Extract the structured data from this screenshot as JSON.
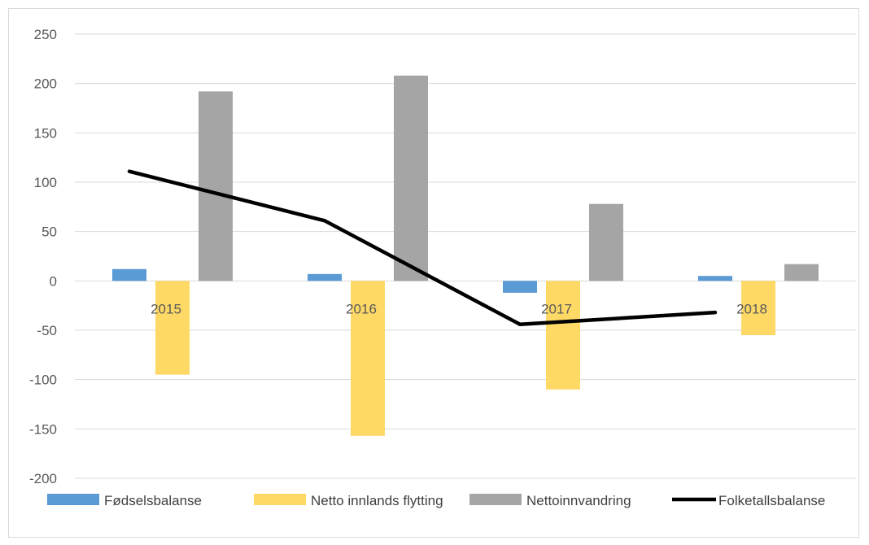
{
  "chart_data": {
    "type": "bar",
    "categories": [
      "2015",
      "2016",
      "2017",
      "2018"
    ],
    "series": [
      {
        "name": "Fødselsbalanse",
        "kind": "bar",
        "color": "#5b9bd5",
        "values": [
          12,
          7,
          -12,
          5
        ]
      },
      {
        "name": "Netto innlands flytting",
        "kind": "bar",
        "color": "#ffd966",
        "values": [
          -95,
          -157,
          -110,
          -55
        ]
      },
      {
        "name": "Nettoinnvandring",
        "kind": "bar",
        "color": "#a5a5a5",
        "values": [
          192,
          208,
          78,
          17
        ]
      },
      {
        "name": "Folketallsbalanse",
        "kind": "line",
        "color": "#000000",
        "values": [
          111,
          61,
          -44,
          -32
        ]
      }
    ],
    "y_ticks": [
      "250",
      "200",
      "150",
      "100",
      "50",
      "0",
      "-50",
      "-100",
      "-150",
      "-200"
    ],
    "ylim": [
      -200,
      250
    ],
    "grid": true,
    "legend_position": "bottom",
    "title": "",
    "xlabel": "",
    "ylabel": ""
  }
}
